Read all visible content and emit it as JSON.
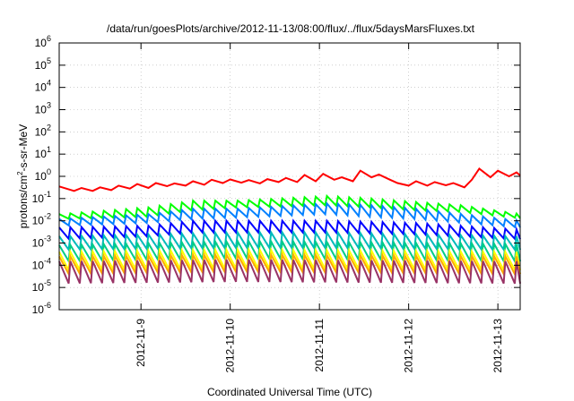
{
  "chart_data": {
    "type": "line",
    "title": "/data/run/goesPlots/archive/2012-11-13/08:00/flux/../flux/5daysMarsFluxes.txt",
    "xlabel": "Coordinated Universal Time (UTC)",
    "ylabel_parts": {
      "base": "protons/cm",
      "sup": "2",
      "rest": "-s-sr-MeV"
    },
    "x_range": [
      "2012-11-08T02:00",
      "2012-11-13T06:00"
    ],
    "y_scale": "log",
    "ylim": [
      1e-06,
      1000000.0
    ],
    "grid": true,
    "x_ticks": [
      {
        "label": "2012-11-9",
        "date": "2012-11-09T00:00"
      },
      {
        "label": "2012-11-10",
        "date": "2012-11-10T00:00"
      },
      {
        "label": "2012-11-11",
        "date": "2012-11-11T00:00"
      },
      {
        "label": "2012-11-12",
        "date": "2012-11-12T00:00"
      },
      {
        "label": "2012-11-13",
        "date": "2012-11-13T00:00"
      }
    ],
    "y_ticks": [
      {
        "base": "10",
        "exp": "6",
        "value": 1000000.0
      },
      {
        "base": "10",
        "exp": "5",
        "value": 100000.0
      },
      {
        "base": "10",
        "exp": "4",
        "value": 10000.0
      },
      {
        "base": "10",
        "exp": "3",
        "value": 1000.0
      },
      {
        "base": "10",
        "exp": "2",
        "value": 100.0
      },
      {
        "base": "10",
        "exp": "1",
        "value": 10.0
      },
      {
        "base": "10",
        "exp": "0",
        "value": 1.0
      },
      {
        "base": "10",
        "exp": "-1",
        "value": 0.1
      },
      {
        "base": "10",
        "exp": "-2",
        "value": 0.01
      },
      {
        "base": "10",
        "exp": "-3",
        "value": 0.001
      },
      {
        "base": "10",
        "exp": "-4",
        "value": 0.0001
      },
      {
        "base": "10",
        "exp": "-5",
        "value": 1e-05
      },
      {
        "base": "10",
        "exp": "-6",
        "value": 1e-06
      }
    ],
    "series": [
      {
        "color": "#ff0000",
        "x": [
          "2012-11-08T02:00",
          "2012-11-08T06:00",
          "2012-11-08T08:00",
          "2012-11-08T11:00",
          "2012-11-08T13:00",
          "2012-11-08T16:00",
          "2012-11-08T18:00",
          "2012-11-08T21:00",
          "2012-11-08T23:00",
          "2012-11-09T02:00",
          "2012-11-09T04:00",
          "2012-11-09T07:00",
          "2012-11-09T09:00",
          "2012-11-09T12:00",
          "2012-11-09T14:00",
          "2012-11-09T17:00",
          "2012-11-09T19:00",
          "2012-11-09T22:00",
          "2012-11-10T00:00",
          "2012-11-10T03:00",
          "2012-11-10T05:00",
          "2012-11-10T08:00",
          "2012-11-10T10:00",
          "2012-11-10T13:00",
          "2012-11-10T15:00",
          "2012-11-10T18:00",
          "2012-11-10T20:00",
          "2012-11-10T23:00",
          "2012-11-11T01:00",
          "2012-11-11T04:00",
          "2012-11-11T06:00",
          "2012-11-11T09:00",
          "2012-11-11T11:00",
          "2012-11-11T14:00",
          "2012-11-11T16:00",
          "2012-11-11T19:00",
          "2012-11-11T21:00",
          "2012-11-12T00:00",
          "2012-11-12T02:00",
          "2012-11-12T05:00",
          "2012-11-12T07:00",
          "2012-11-12T10:00",
          "2012-11-12T12:00",
          "2012-11-12T15:00",
          "2012-11-12T17:00",
          "2012-11-12T19:00",
          "2012-11-12T22:00",
          "2012-11-13T00:00",
          "2012-11-13T03:00",
          "2012-11-13T05:00",
          "2012-11-13T06:00"
        ],
        "y": [
          0.35,
          0.22,
          0.3,
          0.22,
          0.32,
          0.24,
          0.38,
          0.28,
          0.45,
          0.3,
          0.5,
          0.36,
          0.48,
          0.38,
          0.6,
          0.42,
          0.7,
          0.5,
          0.72,
          0.52,
          0.68,
          0.48,
          0.75,
          0.55,
          0.85,
          0.55,
          1.15,
          0.6,
          1.3,
          0.7,
          0.9,
          0.6,
          1.8,
          0.9,
          1.2,
          0.7,
          0.5,
          0.38,
          0.6,
          0.38,
          0.55,
          0.4,
          0.5,
          0.32,
          0.7,
          2.2,
          0.9,
          1.8,
          1.0,
          1.5,
          1.1
        ]
      },
      {
        "color": "#00ff00",
        "mode": "sawtooth",
        "x_start": "2012-11-08T02:00",
        "period_hours": 3,
        "x_end": "2012-11-13T06:00",
        "peak": [
          [
            0,
            0.02
          ],
          [
            24,
            0.04
          ],
          [
            36,
            0.08
          ],
          [
            48,
            0.08
          ],
          [
            72,
            0.13
          ],
          [
            84,
            0.1
          ],
          [
            96,
            0.07
          ],
          [
            108,
            0.05
          ],
          [
            124,
            0.02
          ]
        ],
        "trough": [
          [
            0,
            0.012
          ],
          [
            24,
            0.015
          ],
          [
            36,
            0.03
          ],
          [
            48,
            0.04
          ],
          [
            72,
            0.05
          ],
          [
            84,
            0.04
          ],
          [
            96,
            0.03
          ],
          [
            108,
            0.025
          ],
          [
            124,
            0.013
          ]
        ]
      },
      {
        "color": "#0080ff",
        "mode": "sawtooth",
        "x_start": "2012-11-08T02:00",
        "period_hours": 3,
        "x_end": "2012-11-13T06:00",
        "peak": [
          [
            0,
            0.012
          ],
          [
            24,
            0.02
          ],
          [
            36,
            0.035
          ],
          [
            48,
            0.035
          ],
          [
            72,
            0.06
          ],
          [
            84,
            0.05
          ],
          [
            96,
            0.035
          ],
          [
            124,
            0.01
          ]
        ],
        "trough": [
          [
            0,
            0.006
          ],
          [
            24,
            0.008
          ],
          [
            36,
            0.012
          ],
          [
            48,
            0.014
          ],
          [
            72,
            0.02
          ],
          [
            84,
            0.015
          ],
          [
            96,
            0.012
          ],
          [
            124,
            0.005
          ]
        ]
      },
      {
        "color": "#0000ff",
        "mode": "sawtooth",
        "x_start": "2012-11-08T02:00",
        "period_hours": 3,
        "x_end": "2012-11-13T06:00",
        "peak": [
          [
            0,
            0.005
          ],
          [
            24,
            0.006
          ],
          [
            36,
            0.01
          ],
          [
            48,
            0.01
          ],
          [
            72,
            0.01
          ],
          [
            96,
            0.008
          ],
          [
            124,
            0.004
          ]
        ],
        "trough": [
          [
            0,
            0.0015
          ],
          [
            24,
            0.002
          ],
          [
            36,
            0.003
          ],
          [
            48,
            0.003
          ],
          [
            72,
            0.003
          ],
          [
            96,
            0.0025
          ],
          [
            124,
            0.0015
          ]
        ]
      },
      {
        "color": "#00bbbb",
        "mode": "sawtooth",
        "x_start": "2012-11-08T02:00",
        "period_hours": 3,
        "x_end": "2012-11-13T06:00",
        "peak": [
          [
            0,
            0.002
          ],
          [
            48,
            0.003
          ],
          [
            72,
            0.003
          ],
          [
            124,
            0.002
          ]
        ],
        "trough": [
          [
            0,
            0.0005
          ],
          [
            48,
            0.0006
          ],
          [
            72,
            0.0006
          ],
          [
            124,
            0.0005
          ]
        ]
      },
      {
        "color": "#00cc88",
        "mode": "sawtooth",
        "x_start": "2012-11-08T02:00",
        "period_hours": 3,
        "x_end": "2012-11-13T06:00",
        "peak": [
          [
            0,
            0.0008
          ],
          [
            48,
            0.0012
          ],
          [
            124,
            0.0009
          ]
        ],
        "trough": [
          [
            0,
            0.00015
          ],
          [
            48,
            0.0002
          ],
          [
            124,
            0.00015
          ]
        ]
      },
      {
        "color": "#ffff00",
        "mode": "sawtooth",
        "x_start": "2012-11-08T02:00",
        "period_hours": 3,
        "x_end": "2012-11-13T06:00",
        "peak": [
          [
            0,
            0.0004
          ],
          [
            48,
            0.0005
          ],
          [
            124,
            0.0004
          ]
        ],
        "trough": [
          [
            0,
            6e-05
          ],
          [
            48,
            7e-05
          ],
          [
            124,
            6e-05
          ]
        ]
      },
      {
        "color": "#ffaa00",
        "mode": "sawtooth",
        "x_start": "2012-11-08T02:00",
        "period_hours": 3,
        "x_end": "2012-11-13T06:00",
        "peak": [
          [
            0,
            0.00025
          ],
          [
            48,
            0.0003
          ],
          [
            124,
            0.00025
          ]
        ],
        "trough": [
          [
            0,
            4e-05
          ],
          [
            48,
            5e-05
          ],
          [
            124,
            4e-05
          ]
        ]
      },
      {
        "color": "#993366",
        "mode": "sawtooth",
        "x_start": "2012-11-08T02:00",
        "period_hours": 3,
        "x_end": "2012-11-13T06:00",
        "peak": [
          [
            0,
            0.00015
          ],
          [
            48,
            0.00018
          ],
          [
            124,
            0.00015
          ]
        ],
        "trough": [
          [
            0,
            1.5e-05
          ],
          [
            48,
            1.8e-05
          ],
          [
            124,
            1.5e-05
          ]
        ]
      }
    ]
  }
}
